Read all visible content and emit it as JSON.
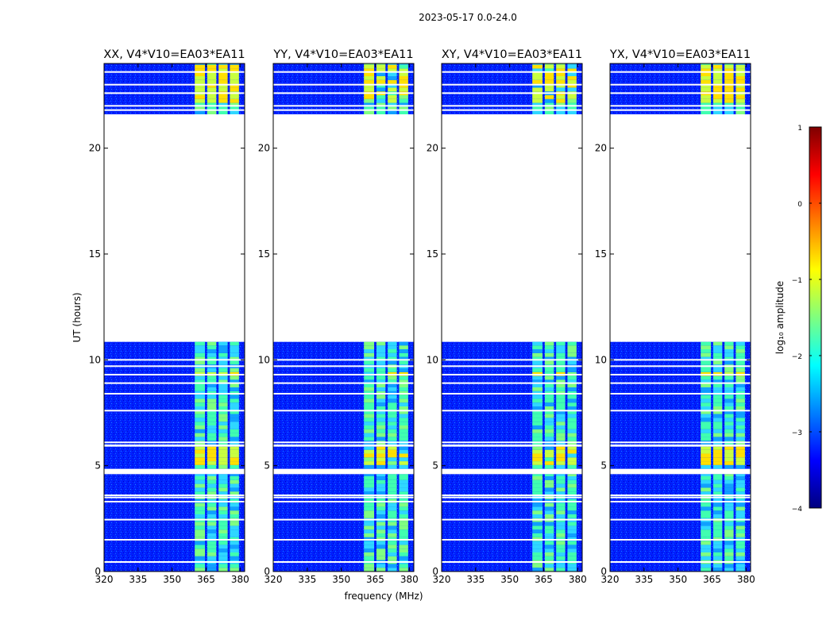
{
  "figure": {
    "suptitle": "2023-05-17 0.0-24.0",
    "ylabel": "UT (hours)",
    "xlabel": "frequency (MHz)"
  },
  "colorbar": {
    "label": "log₁₀ amplitude",
    "range": [
      -4,
      1
    ],
    "ticks": [
      1,
      0,
      -1,
      -2,
      -3,
      -4
    ],
    "tick_labels": [
      "1",
      "0",
      "−1",
      "−2",
      "−3",
      "−4"
    ],
    "colors": [
      "#00007f",
      "#0000ff",
      "#007fff",
      "#00ffff",
      "#7fff7f",
      "#ffff00",
      "#ff7f00",
      "#ff0000",
      "#7f0000"
    ]
  },
  "chart_data": [
    {
      "type": "heatmap",
      "title": "XX, V4*V10=EA03*EA11",
      "xlim": [
        320,
        382
      ],
      "ylim": [
        0,
        24
      ],
      "xticks": [
        320,
        335,
        350,
        365,
        380
      ],
      "yticks": [
        0,
        5,
        10,
        15,
        20
      ],
      "xtick_labels": [
        "320",
        "335",
        "350",
        "365",
        "380"
      ],
      "ytick_labels": [
        "0",
        "5",
        "10",
        "15",
        "20"
      ]
    },
    {
      "type": "heatmap",
      "title": "YY, V4*V10=EA03*EA11",
      "xlim": [
        320,
        382
      ],
      "ylim": [
        0,
        24
      ],
      "xticks": [
        320,
        335,
        350,
        365,
        380
      ],
      "yticks": [
        0,
        5,
        10,
        15,
        20
      ],
      "xtick_labels": [
        "320",
        "335",
        "350",
        "365",
        "380"
      ],
      "ytick_labels": [
        "0",
        "5",
        "10",
        "15",
        "20"
      ]
    },
    {
      "type": "heatmap",
      "title": "XY, V4*V10=EA03*EA11",
      "xlim": [
        320,
        382
      ],
      "ylim": [
        0,
        24
      ],
      "xticks": [
        320,
        335,
        350,
        365,
        380
      ],
      "yticks": [
        0,
        5,
        10,
        15,
        20
      ],
      "xtick_labels": [
        "320",
        "335",
        "350",
        "365",
        "380"
      ],
      "ytick_labels": [
        "0",
        "5",
        "10",
        "15",
        "20"
      ]
    },
    {
      "type": "heatmap",
      "title": "YX, V4*V10=EA03*EA11",
      "xlim": [
        320,
        382
      ],
      "ylim": [
        0,
        24
      ],
      "xticks": [
        320,
        335,
        350,
        365,
        380
      ],
      "yticks": [
        0,
        5,
        10,
        15,
        20
      ],
      "xtick_labels": [
        "320",
        "335",
        "350",
        "365",
        "380"
      ],
      "ytick_labels": [
        "0",
        "5",
        "10",
        "15",
        "20"
      ]
    }
  ],
  "data_coverage": {
    "time_blocks_hours": [
      [
        0,
        4.6
      ],
      [
        4.85,
        5.9
      ],
      [
        6.0,
        10.85
      ],
      [
        21.6,
        24
      ]
    ],
    "flagged_times_hours": [
      0.45,
      1.5,
      2.45,
      3.3,
      3.5,
      3.6,
      6.1,
      7.6,
      8.4,
      8.9,
      9.3,
      9.7,
      10.0,
      21.8,
      22.0,
      22.6,
      23.0,
      23.6
    ],
    "signal_bands_mhz": [
      [
        360,
        364.5
      ],
      [
        365.5,
        369.5
      ],
      [
        370.5,
        374.5
      ],
      [
        375.5,
        379.5
      ]
    ],
    "peak_time_ranges_hours": [
      [
        5.0,
        5.9
      ],
      [
        9.2,
        9.5
      ],
      [
        22.2,
        23.9
      ]
    ]
  }
}
